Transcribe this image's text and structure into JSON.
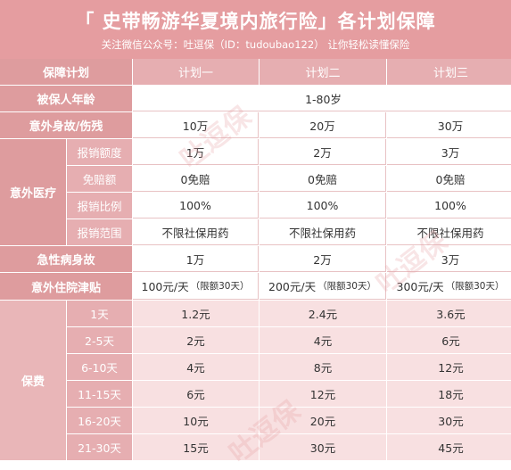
{
  "header": {
    "title": "「 史带畅游华夏境内旅行险」各计划保障",
    "subtitle": "关注微信公众号：吐逗保（ID：tudoubao122）  让你轻松读懂保险"
  },
  "table": {
    "header_row": {
      "label": "保障计划",
      "plans": [
        "计划一",
        "计划二",
        "计划三"
      ]
    },
    "age": {
      "label": "被保人年龄",
      "value": "1-80岁"
    },
    "accident_death": {
      "label": "意外身故/伤残",
      "values": [
        "10万",
        "20万",
        "30万"
      ]
    },
    "medical": {
      "label": "意外医疗",
      "rows": [
        {
          "label": "报销额度",
          "values": [
            "1万",
            "2万",
            "3万"
          ]
        },
        {
          "label": "免赔额",
          "values": [
            "0免赔",
            "0免赔",
            "0免赔"
          ]
        },
        {
          "label": "报销比例",
          "values": [
            "100%",
            "100%",
            "100%"
          ]
        },
        {
          "label": "报销范围",
          "values": [
            "不限社保用药",
            "不限社保用药",
            "不限社保用药"
          ]
        }
      ]
    },
    "sudden_death": {
      "label": "急性病身故",
      "values": [
        "1万",
        "2万",
        "3万"
      ]
    },
    "hospital": {
      "label": "意外住院津贴",
      "values": [
        "100元/天",
        "200元/天",
        "300元/天"
      ],
      "note": "（限额30天）"
    },
    "premium": {
      "label": "保费",
      "rows": [
        {
          "label": "1天",
          "values": [
            "1.2元",
            "2.4元",
            "3.6元"
          ]
        },
        {
          "label": "2-5天",
          "values": [
            "2元",
            "4元",
            "6元"
          ]
        },
        {
          "label": "6-10天",
          "values": [
            "4元",
            "8元",
            "12元"
          ]
        },
        {
          "label": "11-15天",
          "values": [
            "6元",
            "12元",
            "18元"
          ]
        },
        {
          "label": "16-20天",
          "values": [
            "10元",
            "20元",
            "30元"
          ]
        },
        {
          "label": "21-30天",
          "values": [
            "15元",
            "30元",
            "45元"
          ]
        }
      ]
    }
  },
  "watermark": "吐逗保",
  "colors": {
    "header_bg": "#e59da0",
    "label_bg": "#de9c9e",
    "sub_label_bg": "#e6aeb1",
    "premium_bg": "#f8e0e1"
  }
}
